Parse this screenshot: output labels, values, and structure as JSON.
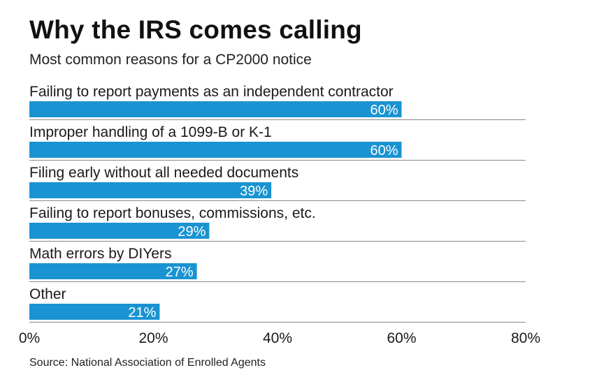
{
  "title": "Why the IRS comes calling",
  "subtitle": "Most common reasons for a CP2000 notice",
  "source": "Source: National Association of Enrolled Agents",
  "colors": {
    "bar": "#1a93d2",
    "bar_label": "#ffffff",
    "divider": "#8a8a8a",
    "text": "#1a1a1a"
  },
  "chart_data": {
    "type": "bar",
    "orientation": "horizontal",
    "title": "Why the IRS comes calling",
    "subtitle": "Most common reasons for a CP2000 notice",
    "categories": [
      "Failing to report payments as an independent contractor",
      "Improper handling of a 1099-B or K-1",
      "Filing early without all needed documents",
      "Failing to report bonuses, commissions, etc.",
      "Math errors by DIYers",
      "Other"
    ],
    "values": [
      60,
      60,
      39,
      29,
      27,
      21
    ],
    "value_labels": [
      "60%",
      "60%",
      "39%",
      "29%",
      "27%",
      "21%"
    ],
    "xlim": [
      0,
      80
    ],
    "x_ticks": [
      0,
      20,
      40,
      60,
      80
    ],
    "x_tick_labels": [
      "0%",
      "20%",
      "40%",
      "60%",
      "80%"
    ],
    "xlabel": "",
    "ylabel": "",
    "grid": false,
    "legend": "none"
  }
}
